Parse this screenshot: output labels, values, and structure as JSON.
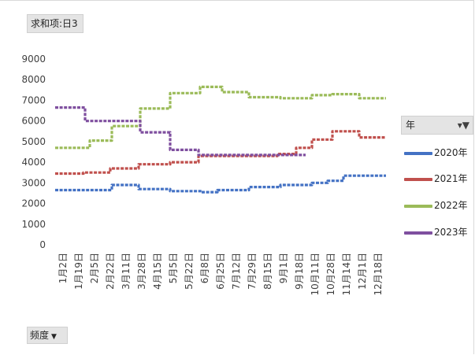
{
  "value_field": "求和项:日3",
  "axis_field": "频度",
  "legend": {
    "title": "年",
    "filter_icon": "filter-dropdown-icon",
    "items": [
      {
        "label": "2020年",
        "color": "#4472c4"
      },
      {
        "label": "2021年",
        "color": "#c0504d"
      },
      {
        "label": "2022年",
        "color": "#9bbb59"
      },
      {
        "label": "2023年",
        "color": "#7f4f9f"
      }
    ]
  },
  "chart_data": {
    "type": "line",
    "ylim": [
      0,
      9000
    ],
    "y_ticks": [
      "0",
      "1000",
      "2000",
      "3000",
      "4000",
      "5000",
      "6000",
      "7000",
      "8000",
      "9000"
    ],
    "x_tick_labels": [
      "1月2日",
      "1月19日",
      "2月5日",
      "2月22日",
      "3月11日",
      "3月28日",
      "4月15日",
      "5月5日",
      "5月22日",
      "6月8日",
      "6月25日",
      "7月12日",
      "7月29日",
      "8月15日",
      "9月1日",
      "9月18日",
      "10月11日",
      "10月28日",
      "11月14日",
      "12月1日",
      "12月18日"
    ],
    "x_range": [
      0,
      21
    ],
    "legend_position": "right",
    "grid": false,
    "series": [
      {
        "name": "2020年",
        "steps": [
          [
            0,
            2650
          ],
          [
            2,
            2650
          ],
          [
            3.6,
            2900
          ],
          [
            5.3,
            2700
          ],
          [
            7.3,
            2600
          ],
          [
            9.3,
            2550
          ],
          [
            10.3,
            2650
          ],
          [
            12.3,
            2800
          ],
          [
            14.3,
            2900
          ],
          [
            16.3,
            3000
          ],
          [
            17.3,
            3100
          ],
          [
            18.3,
            3350
          ],
          [
            21,
            3350
          ]
        ]
      },
      {
        "name": "2021年",
        "steps": [
          [
            0,
            3450
          ],
          [
            1.8,
            3500
          ],
          [
            3.5,
            3700
          ],
          [
            5.3,
            3900
          ],
          [
            7.3,
            4000
          ],
          [
            9.1,
            4300
          ],
          [
            14.1,
            4400
          ],
          [
            15.3,
            4700
          ],
          [
            16.3,
            5100
          ],
          [
            17.6,
            5500
          ],
          [
            19.3,
            5200
          ],
          [
            21,
            5200
          ]
        ]
      },
      {
        "name": "2022年",
        "steps": [
          [
            0,
            4700
          ],
          [
            2.2,
            5050
          ],
          [
            3.6,
            5750
          ],
          [
            5.4,
            6600
          ],
          [
            7.3,
            7350
          ],
          [
            9.2,
            7650
          ],
          [
            10.6,
            7400
          ],
          [
            12.3,
            7150
          ],
          [
            14.3,
            7100
          ],
          [
            16.3,
            7250
          ],
          [
            17.6,
            7300
          ],
          [
            19.3,
            7100
          ],
          [
            21,
            7100
          ]
        ]
      },
      {
        "name": "2023年",
        "steps": [
          [
            0,
            6650
          ],
          [
            1.9,
            6000
          ],
          [
            5.4,
            5450
          ],
          [
            7.3,
            4600
          ],
          [
            9.1,
            4350
          ],
          [
            10.3,
            4350
          ],
          [
            15.9,
            4350
          ]
        ]
      }
    ]
  }
}
